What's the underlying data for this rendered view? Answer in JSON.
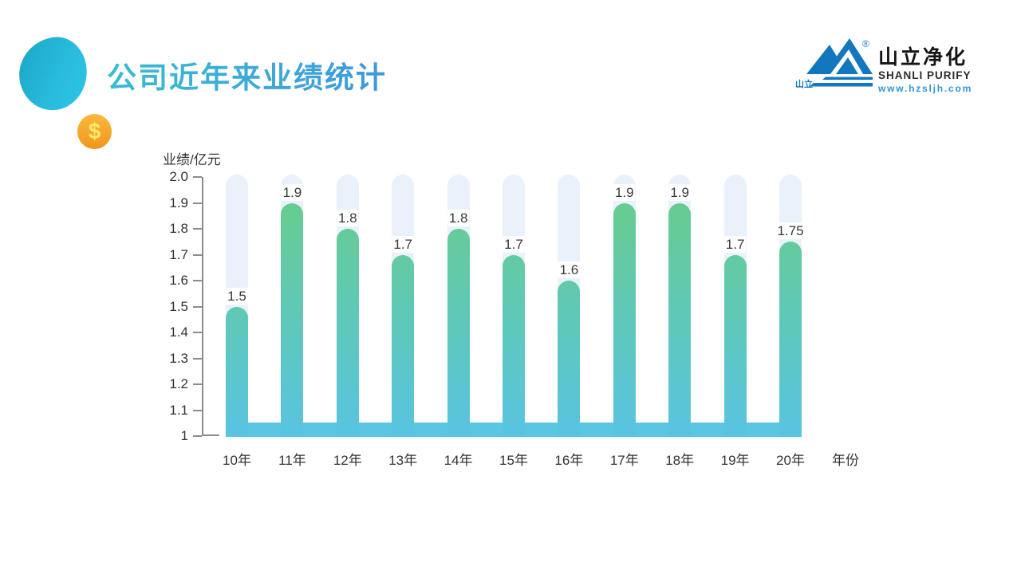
{
  "header": {
    "title": "公司近年来业绩统计",
    "coin": {
      "symbol": "$"
    },
    "logo": {
      "badge": "山立",
      "registered": "®",
      "name_cn": "山立净化",
      "name_en": "SHANLI PURIFY",
      "website": "www.hzsljh.com",
      "brand_blue": "#1377BD"
    }
  },
  "chart_data": {
    "type": "bar",
    "title": "公司近年来业绩统计",
    "categories": [
      "10年",
      "11年",
      "12年",
      "13年",
      "14年",
      "15年",
      "16年",
      "17年",
      "18年",
      "19年",
      "20年"
    ],
    "values": [
      1.5,
      1.9,
      1.8,
      1.7,
      1.8,
      1.7,
      1.6,
      1.9,
      1.9,
      1.7,
      1.75
    ],
    "value_labels": [
      "1.5",
      "1.9",
      "1.8",
      "1.7",
      "1.8",
      "1.7",
      "1.6",
      "1.9",
      "1.9",
      "1.7",
      "1.75"
    ],
    "ylabel": "业绩/亿元",
    "xlabel": "年份",
    "ylim": [
      1,
      2
    ],
    "ytick_step": 0.1,
    "yticks": [
      "2.0",
      "1.9",
      "1.8",
      "1.7",
      "1.6",
      "1.5",
      "1.4",
      "1.3",
      "1.2",
      "1.1",
      "1"
    ],
    "grid": false,
    "legend": "none",
    "colors": {
      "bar_top": "#66CC90",
      "bar_bottom": "#58C4E2",
      "track": "#E9F2FB",
      "base": "#5AC6E2",
      "axis": "#8C8C8C",
      "tick_text": "#333333",
      "value_text": "#383838"
    }
  }
}
